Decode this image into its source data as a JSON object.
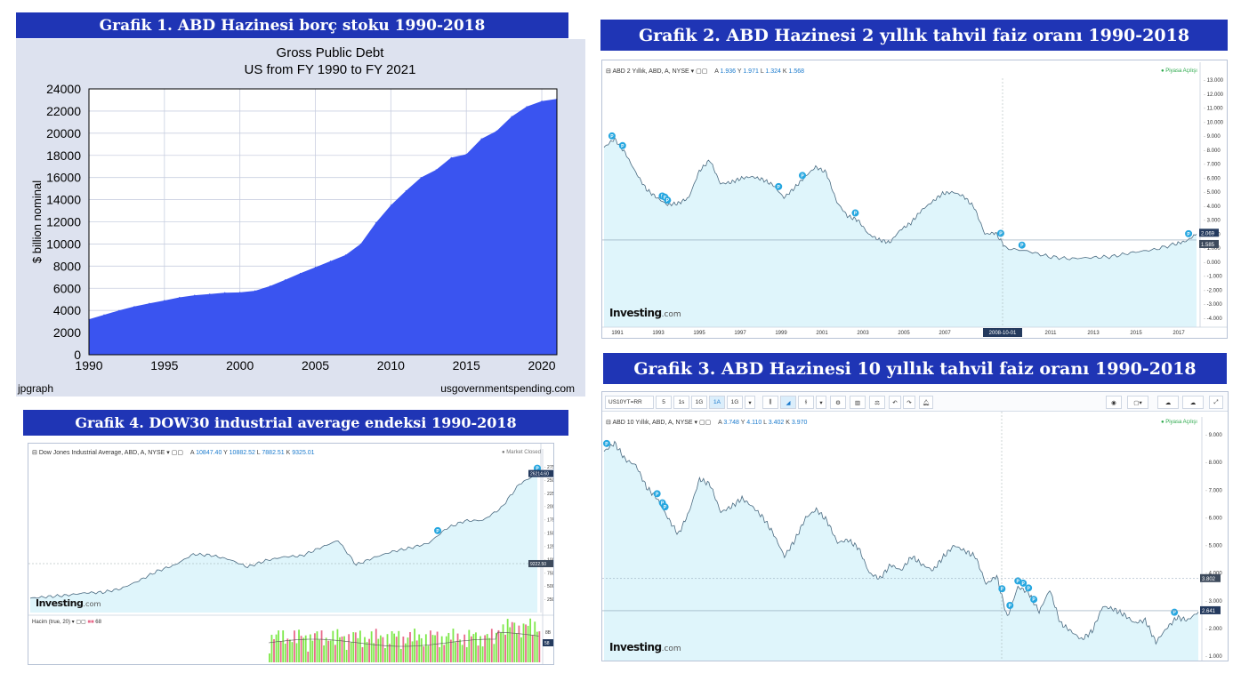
{
  "banners": {
    "g1": "Grafik 1. ABD Hazinesi borç stoku 1990-2018",
    "g2": "Grafik 2. ABD Hazinesi 2 yıllık tahvil faiz oranı 1990-2018",
    "g3": "Grafik 3. ABD Hazinesi 10 yıllık tahvil faiz oranı 1990-2018",
    "g4": "Grafik 4. DOW30 industrial average endeksi 1990-2018"
  },
  "colors": {
    "banner": "#1f35b5",
    "fill_blue": "#3a54f0",
    "area_line": "#4a6a80",
    "area_fill": "#dff5fb",
    "marker": "#27a7e0",
    "vol_up": "#7ee84a",
    "vol_down": "#e86a8a"
  },
  "chart_data": [
    {
      "id": "gross-public-debt",
      "type": "area",
      "title": "Gross Public Debt",
      "subtitle": "US from FY 1990 to FY 2021",
      "ylabel": "$ billion nominal",
      "xlabel": "",
      "xlim": [
        1990,
        2021
      ],
      "ylim": [
        0,
        24000
      ],
      "xticks": [
        "1990",
        "1995",
        "2000",
        "2005",
        "2010",
        "2015",
        "2020"
      ],
      "yticks": [
        "0",
        "2000",
        "4000",
        "6000",
        "8000",
        "10000",
        "12000",
        "14000",
        "16000",
        "18000",
        "20000",
        "22000",
        "24000"
      ],
      "grid": true,
      "footer_left": "jpgraph",
      "footer_right": "usgovernmentspending.com",
      "x": [
        1990,
        1991,
        1992,
        1993,
        1994,
        1995,
        1996,
        1997,
        1998,
        1999,
        2000,
        2001,
        2002,
        2003,
        2004,
        2005,
        2006,
        2007,
        2008,
        2009,
        2010,
        2011,
        2012,
        2013,
        2014,
        2015,
        2016,
        2017,
        2018,
        2019,
        2020,
        2021
      ],
      "values": [
        3200,
        3600,
        4000,
        4350,
        4640,
        4900,
        5180,
        5370,
        5480,
        5600,
        5630,
        5770,
        6200,
        6760,
        7350,
        7900,
        8450,
        9000,
        10000,
        11900,
        13500,
        14800,
        16000,
        16700,
        17800,
        18100,
        19500,
        20200,
        21500,
        22400,
        22900,
        23100
      ]
    },
    {
      "id": "us-2y-yield",
      "type": "area",
      "header": "ABD 2 Yıllık, ABD, A, NYSE",
      "ohlc": {
        "A": "1.936",
        "Y": "1.971",
        "L": "1.324",
        "K": "1.568"
      },
      "market_status": "Piyasa Açılışı",
      "xticks": [
        "1991",
        "1993",
        "1995",
        "1997",
        "1999",
        "2001",
        "2003",
        "2005",
        "2007",
        "2008-10-01",
        "2011",
        "2013",
        "2015",
        "2017"
      ],
      "yticks": [
        "13.000",
        "12.000",
        "11.000",
        "10.000",
        "9.000",
        "8.000",
        "7.000",
        "6.000",
        "5.000",
        "4.000",
        "3.000",
        "2.000",
        "1.000",
        "0.000",
        "-1.000",
        "-2.000",
        "-3.000",
        "-4.000"
      ],
      "ylim": [
        -4,
        13
      ],
      "tags": [
        "2.069",
        "1.585"
      ],
      "x": [
        1990,
        1990.5,
        1991,
        1991.5,
        1992,
        1992.5,
        1993,
        1993.5,
        1994,
        1994.5,
        1995,
        1995.5,
        1996,
        1996.5,
        1997,
        1997.5,
        1998,
        1998.5,
        1999,
        1999.5,
        2000,
        2000.5,
        2001,
        2001.5,
        2002,
        2002.5,
        2003,
        2003.5,
        2004,
        2004.5,
        2005,
        2005.5,
        2006,
        2006.5,
        2007,
        2007.5,
        2008,
        2008.5,
        2009,
        2010,
        2011,
        2012,
        2013,
        2014,
        2015,
        2016,
        2017,
        2017.5,
        2018
      ],
      "values": [
        8.2,
        8.8,
        7.8,
        6.4,
        5.2,
        4.6,
        4.1,
        4.2,
        4.6,
        6.5,
        7.3,
        5.6,
        5.7,
        6.0,
        6.1,
        5.9,
        5.5,
        4.6,
        5.3,
        6.1,
        6.8,
        6.4,
        4.3,
        3.3,
        3.0,
        2.0,
        1.6,
        1.4,
        2.3,
        2.8,
        3.7,
        4.3,
        4.9,
        5.0,
        4.7,
        3.9,
        2.0,
        2.1,
        1.0,
        0.8,
        0.4,
        0.25,
        0.33,
        0.4,
        0.7,
        0.9,
        1.3,
        1.5,
        2.0
      ]
    },
    {
      "id": "us-10y-yield",
      "type": "area",
      "symbol": "US10YT=RR",
      "toolbar": [
        "5",
        "1s",
        "1G",
        "1A",
        "1G"
      ],
      "header": "ABD 10 Yıllık, ABD, A, NYSE",
      "ohlc": {
        "A": "3.748",
        "Y": "4.110",
        "L": "3.402",
        "K": "3.970"
      },
      "market_status": "Piyasa Açılışı",
      "yticks": [
        "9.000",
        "8.000",
        "7.000",
        "6.000",
        "5.000",
        "4.000",
        "3.000",
        "2.000",
        "1.000"
      ],
      "ylim": [
        1,
        9
      ],
      "tags": [
        "3.802",
        "2.641"
      ],
      "x": [
        1990,
        1990.5,
        1991,
        1991.5,
        1992,
        1992.5,
        1993,
        1993.5,
        1994,
        1994.5,
        1995,
        1995.5,
        1996,
        1996.5,
        1997,
        1997.5,
        1998,
        1998.5,
        1999,
        1999.5,
        2000,
        2000.5,
        2001,
        2001.5,
        2002,
        2002.5,
        2003,
        2003.5,
        2004,
        2004.5,
        2005,
        2005.5,
        2006,
        2006.5,
        2007,
        2007.5,
        2008,
        2008.5,
        2009,
        2009.5,
        2010,
        2010.5,
        2011,
        2011.5,
        2012,
        2012.5,
        2013,
        2013.5,
        2014,
        2014.5,
        2015,
        2015.5,
        2016,
        2016.5,
        2017,
        2017.5,
        2018
      ],
      "values": [
        8.4,
        8.7,
        8.1,
        7.9,
        7.1,
        6.7,
        6.0,
        5.4,
        6.2,
        7.4,
        7.2,
        6.2,
        6.4,
        6.7,
        6.4,
        6.0,
        5.4,
        4.6,
        5.2,
        6.0,
        6.3,
        5.9,
        5.1,
        5.2,
        4.9,
        4.0,
        3.8,
        4.3,
        4.1,
        4.6,
        4.3,
        4.1,
        4.6,
        5.0,
        4.8,
        4.6,
        3.6,
        3.9,
        2.4,
        3.5,
        3.3,
        2.6,
        3.4,
        2.2,
        1.9,
        1.6,
        1.9,
        2.8,
        2.7,
        2.5,
        2.2,
        2.3,
        1.5,
        2.0,
        2.4,
        2.3,
        2.6
      ]
    },
    {
      "id": "dow30",
      "type": "area",
      "header": "Dow Jones Industrial Average, ABD, A, NYSE",
      "ohlc": {
        "A": "10847.40",
        "Y": "10882.52",
        "L": "7882.51",
        "K": "9325.01"
      },
      "market_status": "Market Closed",
      "yticks": [
        "27500.00",
        "25000.00",
        "22500.00",
        "20000.00",
        "17500.00",
        "15000.00",
        "12500.00",
        "10000.00",
        "7500.00",
        "5000.00",
        "2500.00"
      ],
      "ylim": [
        0,
        28500
      ],
      "tags": [
        "26214.60",
        "9222.50"
      ],
      "volume_label": "Hacim (true, 20)",
      "volume_value": "68",
      "volume_ticks": [
        "8B"
      ],
      "volume_tag": "58",
      "x": [
        1990,
        1991,
        1992,
        1993,
        1994,
        1995,
        1996,
        1997,
        1998,
        1999,
        2000,
        2001,
        2002,
        2003,
        2004,
        2005,
        2006,
        2007,
        2008,
        2009,
        2010,
        2011,
        2012,
        2013,
        2014,
        2015,
        2016,
        2017,
        2018
      ],
      "values": [
        2700,
        3000,
        3250,
        3700,
        3800,
        4500,
        6000,
        7800,
        9000,
        11000,
        10800,
        10000,
        8600,
        9800,
        10500,
        10700,
        12200,
        13600,
        9000,
        10400,
        11500,
        12200,
        13100,
        15900,
        17300,
        17400,
        19700,
        24200,
        26200
      ]
    }
  ]
}
